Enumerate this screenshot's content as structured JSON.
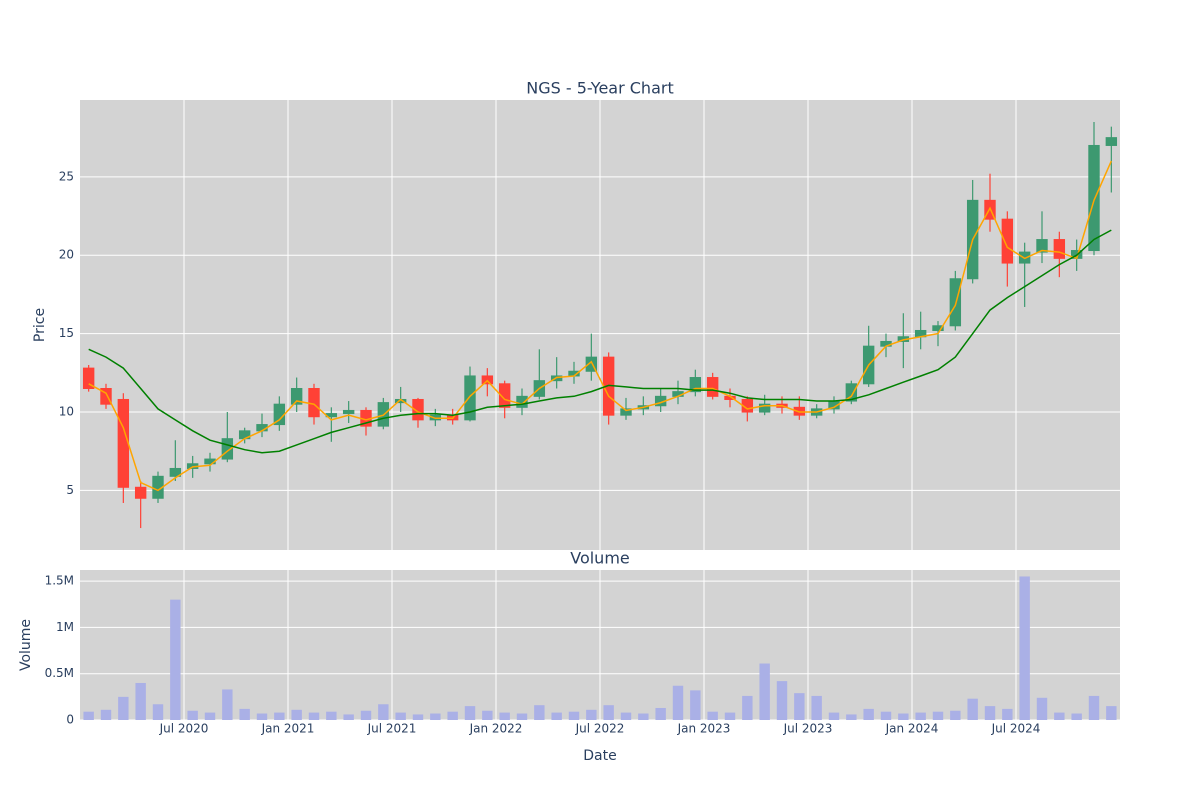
{
  "chart_data": [
    {
      "type": "candlestick",
      "title": "NGS - 5-Year Chart",
      "y_label": "Price",
      "x": [
        "2020-01",
        "2020-02",
        "2020-03",
        "2020-04",
        "2020-05",
        "2020-06",
        "2020-07",
        "2020-08",
        "2020-09",
        "2020-10",
        "2020-11",
        "2020-12",
        "2021-01",
        "2021-02",
        "2021-03",
        "2021-04",
        "2021-05",
        "2021-06",
        "2021-07",
        "2021-08",
        "2021-09",
        "2021-10",
        "2021-11",
        "2021-12",
        "2022-01",
        "2022-02",
        "2022-03",
        "2022-04",
        "2022-05",
        "2022-06",
        "2022-07",
        "2022-08",
        "2022-09",
        "2022-10",
        "2022-11",
        "2022-12",
        "2023-01",
        "2023-02",
        "2023-03",
        "2023-04",
        "2023-05",
        "2023-06",
        "2023-07",
        "2023-08",
        "2023-09",
        "2023-10",
        "2023-11",
        "2023-12",
        "2024-01",
        "2024-02",
        "2024-03",
        "2024-04",
        "2024-05",
        "2024-06",
        "2024-07",
        "2024-08",
        "2024-09",
        "2024-10",
        "2024-11",
        "2024-12"
      ],
      "open": [
        12.8,
        11.5,
        10.8,
        5.2,
        4.5,
        5.9,
        6.4,
        6.7,
        7.0,
        8.3,
        8.8,
        9.2,
        10.5,
        11.5,
        9.7,
        9.9,
        10.1,
        9.1,
        10.6,
        10.8,
        9.5,
        9.8,
        9.5,
        12.3,
        11.8,
        10.3,
        11.0,
        12.0,
        12.3,
        12.6,
        13.5,
        9.8,
        10.2,
        10.4,
        11.0,
        11.3,
        12.2,
        11.0,
        10.8,
        10.0,
        10.5,
        10.3,
        9.8,
        10.2,
        10.7,
        11.8,
        14.2,
        14.5,
        14.8,
        15.2,
        15.5,
        18.5,
        23.5,
        22.3,
        19.5,
        20.2,
        21.0,
        19.8,
        20.3,
        27.0
      ],
      "high": [
        13.0,
        11.8,
        11.2,
        5.6,
        6.2,
        8.2,
        7.2,
        7.4,
        10.0,
        9.0,
        9.9,
        11.0,
        12.2,
        11.8,
        10.3,
        10.7,
        10.3,
        10.9,
        11.6,
        10.9,
        10.2,
        10.2,
        12.9,
        12.8,
        12.0,
        11.5,
        14.0,
        13.5,
        13.2,
        15.0,
        13.8,
        10.9,
        11.0,
        11.5,
        12.0,
        12.7,
        12.5,
        11.5,
        11.0,
        11.1,
        11.0,
        11.0,
        10.5,
        11.0,
        12.0,
        15.5,
        15.0,
        16.3,
        16.4,
        15.8,
        19.0,
        24.8,
        25.2,
        22.8,
        20.8,
        22.8,
        21.5,
        21.0,
        28.5,
        28.2
      ],
      "low": [
        11.3,
        10.2,
        4.2,
        2.6,
        4.2,
        5.6,
        5.8,
        6.2,
        6.8,
        8.0,
        8.4,
        8.8,
        10.0,
        9.2,
        8.1,
        9.3,
        8.5,
        8.9,
        10.0,
        9.0,
        9.1,
        9.2,
        9.4,
        11.0,
        9.6,
        9.8,
        10.8,
        11.5,
        11.8,
        12.0,
        9.2,
        9.5,
        9.8,
        10.0,
        10.5,
        11.0,
        10.8,
        10.3,
        9.4,
        9.8,
        9.9,
        9.5,
        9.6,
        9.9,
        10.5,
        11.6,
        13.5,
        12.8,
        14.0,
        14.2,
        15.2,
        18.2,
        21.5,
        18.0,
        16.7,
        19.5,
        18.6,
        19.0,
        20.0,
        24.0
      ],
      "close": [
        11.5,
        10.5,
        5.2,
        4.5,
        5.9,
        6.4,
        6.7,
        7.0,
        8.3,
        8.8,
        9.2,
        10.5,
        11.5,
        9.7,
        9.9,
        10.1,
        9.1,
        10.6,
        10.8,
        9.5,
        9.8,
        9.5,
        12.3,
        11.8,
        10.3,
        11.0,
        12.0,
        12.3,
        12.6,
        13.5,
        9.8,
        10.2,
        10.4,
        11.0,
        11.3,
        12.2,
        11.0,
        10.8,
        10.0,
        10.5,
        10.3,
        9.8,
        10.2,
        10.7,
        11.8,
        14.2,
        14.5,
        14.8,
        15.2,
        15.5,
        18.5,
        23.5,
        22.3,
        19.5,
        20.2,
        21.0,
        19.8,
        20.3,
        27.0,
        27.5
      ],
      "increasing_color": "#3d9970",
      "decreasing_color": "#ff4136",
      "lines": [
        {
          "color": "orange",
          "values": [
            11.8,
            11.2,
            9.0,
            5.5,
            5.0,
            5.8,
            6.5,
            6.6,
            7.5,
            8.3,
            8.8,
            9.5,
            10.7,
            10.5,
            9.5,
            9.8,
            9.5,
            9.8,
            10.8,
            10.0,
            9.6,
            9.6,
            11.0,
            12.0,
            10.8,
            10.5,
            11.5,
            12.2,
            12.3,
            13.2,
            11.0,
            10.1,
            10.3,
            10.6,
            11.0,
            11.5,
            11.5,
            11.0,
            10.2,
            10.4,
            10.4,
            10.0,
            10.0,
            10.3,
            11.0,
            13.0,
            14.2,
            14.6,
            14.8,
            15.0,
            16.8,
            21.0,
            23.0,
            20.5,
            19.8,
            20.3,
            20.2,
            19.8,
            23.5,
            26.0
          ]
        },
        {
          "color": "green",
          "values": [
            14.0,
            13.5,
            12.8,
            11.5,
            10.2,
            9.5,
            8.8,
            8.2,
            7.9,
            7.6,
            7.4,
            7.5,
            7.9,
            8.3,
            8.7,
            9.0,
            9.3,
            9.6,
            9.8,
            9.9,
            9.9,
            9.8,
            10.0,
            10.3,
            10.4,
            10.5,
            10.7,
            10.9,
            11.0,
            11.3,
            11.7,
            11.6,
            11.5,
            11.5,
            11.5,
            11.4,
            11.4,
            11.2,
            10.9,
            10.8,
            10.8,
            10.8,
            10.7,
            10.7,
            10.8,
            11.1,
            11.5,
            11.9,
            12.3,
            12.7,
            13.5,
            15.0,
            16.5,
            17.3,
            18.0,
            18.7,
            19.4,
            20.0,
            21.0,
            21.6
          ]
        }
      ],
      "xlim": [
        "2020-01",
        "2025-01"
      ],
      "ylim": [
        1.2,
        29.9
      ],
      "yticks": [
        5,
        10,
        15,
        20,
        25
      ],
      "grid": true,
      "background": "#d3d3d3"
    },
    {
      "type": "bar",
      "title": "Volume",
      "y_label": "Volume",
      "x_label": "Date",
      "x": [
        "2020-01",
        "2020-02",
        "2020-03",
        "2020-04",
        "2020-05",
        "2020-06",
        "2020-07",
        "2020-08",
        "2020-09",
        "2020-10",
        "2020-11",
        "2020-12",
        "2021-01",
        "2021-02",
        "2021-03",
        "2021-04",
        "2021-05",
        "2021-06",
        "2021-07",
        "2021-08",
        "2021-09",
        "2021-10",
        "2021-11",
        "2021-12",
        "2022-01",
        "2022-02",
        "2022-03",
        "2022-04",
        "2022-05",
        "2022-06",
        "2022-07",
        "2022-08",
        "2022-09",
        "2022-10",
        "2022-11",
        "2022-12",
        "2023-01",
        "2023-02",
        "2023-03",
        "2023-04",
        "2023-05",
        "2023-06",
        "2023-07",
        "2023-08",
        "2023-09",
        "2023-10",
        "2023-11",
        "2023-12",
        "2024-01",
        "2024-02",
        "2024-03",
        "2024-04",
        "2024-05",
        "2024-06",
        "2024-07",
        "2024-08",
        "2024-09",
        "2024-10",
        "2024-11",
        "2024-12"
      ],
      "values": [
        90000,
        110000,
        250000,
        400000,
        170000,
        1300000,
        100000,
        80000,
        330000,
        120000,
        70000,
        80000,
        110000,
        80000,
        90000,
        60000,
        100000,
        170000,
        80000,
        60000,
        70000,
        90000,
        150000,
        100000,
        80000,
        70000,
        160000,
        80000,
        90000,
        110000,
        160000,
        80000,
        70000,
        130000,
        370000,
        320000,
        90000,
        80000,
        260000,
        610000,
        420000,
        290000,
        260000,
        80000,
        60000,
        120000,
        90000,
        70000,
        80000,
        90000,
        100000,
        230000,
        150000,
        120000,
        1550000,
        240000,
        80000,
        70000,
        260000,
        150000
      ],
      "color": "#aab0e6",
      "xlim": [
        "2020-01",
        "2025-01"
      ],
      "ylim": [
        0,
        1620000
      ],
      "yticks": [
        0,
        {
          "value": 500000,
          "label": "0.5M"
        },
        {
          "value": 1000000,
          "label": "1M"
        },
        {
          "value": 1500000,
          "label": "1.5M"
        }
      ],
      "xticks": [
        {
          "value": "2020-07",
          "label": "Jul 2020"
        },
        {
          "value": "2021-01",
          "label": "Jan 2021"
        },
        {
          "value": "2021-07",
          "label": "Jul 2021"
        },
        {
          "value": "2022-01",
          "label": "Jan 2022"
        },
        {
          "value": "2022-07",
          "label": "Jul 2022"
        },
        {
          "value": "2023-01",
          "label": "Jan 2023"
        },
        {
          "value": "2023-07",
          "label": "Jul 2023"
        },
        {
          "value": "2024-01",
          "label": "Jan 2024"
        },
        {
          "value": "2024-07",
          "label": "Jul 2024"
        }
      ],
      "grid": true,
      "background": "#d3d3d3"
    }
  ]
}
